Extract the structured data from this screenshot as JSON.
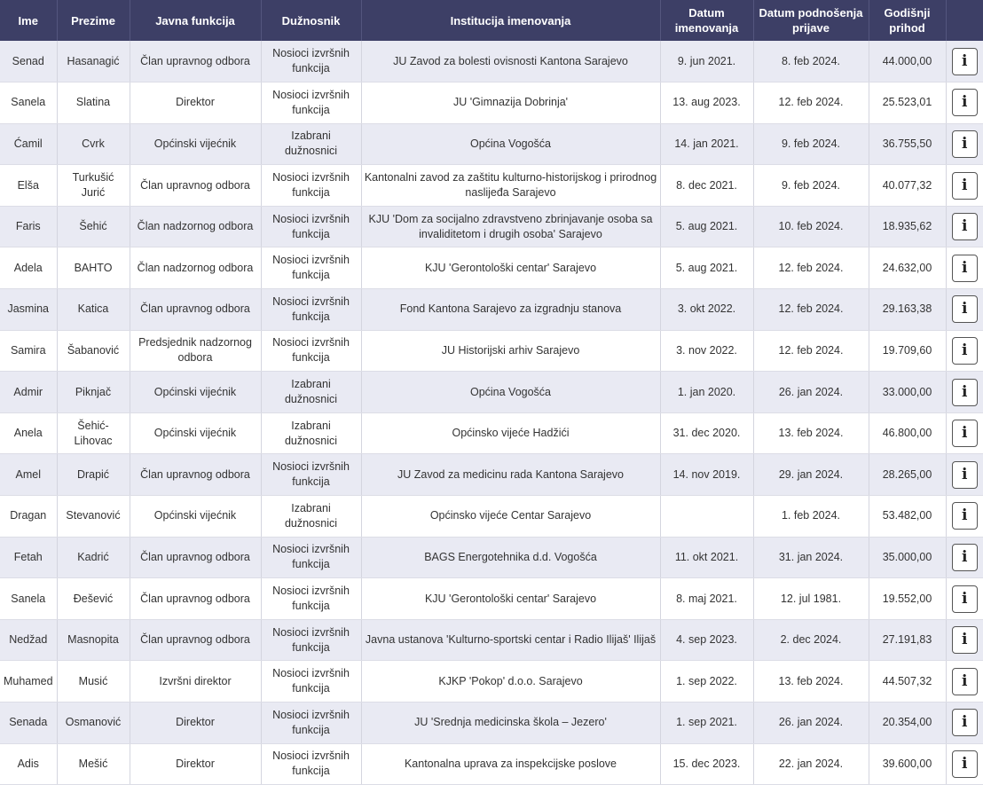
{
  "table": {
    "headers": [
      "Ime",
      "Prezime",
      "Javna funkcija",
      "Dužnosnik",
      "Institucija imenovanja",
      "Datum imenovanja",
      "Datum podnošenja prijave",
      "Godišnji prihod"
    ],
    "info_icon": "i",
    "rows": [
      [
        "Senad",
        "Hasanagić",
        "Član upravnog odbora",
        "Nosioci izvršnih funkcija",
        "JU Zavod za bolesti ovisnosti Kantona Sarajevo",
        "9. jun 2021.",
        "8. feb 2024.",
        "44.000,00"
      ],
      [
        "Sanela",
        "Slatina",
        "Direktor",
        "Nosioci izvršnih funkcija",
        "JU 'Gimnazija Dobrinja'",
        "13. aug 2023.",
        "12. feb 2024.",
        "25.523,01"
      ],
      [
        "Ćamil",
        "Cvrk",
        "Općinski vijećnik",
        "Izabrani dužnosnici",
        "Općina Vogošća",
        "14. jan 2021.",
        "9. feb 2024.",
        "36.755,50"
      ],
      [
        "Elša",
        "Turkušić Jurić",
        "Član upravnog odbora",
        "Nosioci izvršnih funkcija",
        "Kantonalni zavod za zaštitu kulturno-historijskog i prirodnog naslijeđa Sarajevo",
        "8. dec 2021.",
        "9. feb 2024.",
        "40.077,32"
      ],
      [
        "Faris",
        "Šehić",
        "Član nadzornog odbora",
        "Nosioci izvršnih funkcija",
        "KJU 'Dom za socijalno zdravstveno zbrinjavanje osoba sa invaliditetom i drugih osoba' Sarajevo",
        "5. aug 2021.",
        "10. feb 2024.",
        "18.935,62"
      ],
      [
        "Adela",
        "BAHTO",
        "Član nadzornog odbora",
        "Nosioci izvršnih funkcija",
        "KJU 'Gerontološki centar' Sarajevo",
        "5. aug 2021.",
        "12. feb 2024.",
        "24.632,00"
      ],
      [
        "Jasmina",
        "Katica",
        "Član upravnog odbora",
        "Nosioci izvršnih funkcija",
        "Fond Kantona Sarajevo za izgradnju stanova",
        "3. okt 2022.",
        "12. feb 2024.",
        "29.163,38"
      ],
      [
        "Samira",
        "Šabanović",
        "Predsjednik nadzornog odbora",
        "Nosioci izvršnih funkcija",
        "JU Historijski arhiv Sarajevo",
        "3. nov 2022.",
        "12. feb 2024.",
        "19.709,60"
      ],
      [
        "Admir",
        "Piknjač",
        "Općinski vijećnik",
        "Izabrani dužnosnici",
        "Općina Vogošća",
        "1. jan 2020.",
        "26. jan 2024.",
        "33.000,00"
      ],
      [
        "Anela",
        "Šehić-Lihovac",
        "Općinski vijećnik",
        "Izabrani dužnosnici",
        "Općinsko vijeće Hadžići",
        "31. dec 2020.",
        "13. feb 2024.",
        "46.800,00"
      ],
      [
        "Amel",
        "Drapić",
        "Član upravnog odbora",
        "Nosioci izvršnih funkcija",
        "JU Zavod za medicinu rada Kantona Sarajevo",
        "14. nov 2019.",
        "29. jan 2024.",
        "28.265,00"
      ],
      [
        "Dragan",
        "Stevanović",
        "Općinski vijećnik",
        "Izabrani dužnosnici",
        "Općinsko vijeće Centar Sarajevo",
        "",
        "1. feb 2024.",
        "53.482,00"
      ],
      [
        "Fetah",
        "Kadrić",
        "Član upravnog odbora",
        "Nosioci izvršnih funkcija",
        "BAGS Energotehnika d.d. Vogošća",
        "11. okt 2021.",
        "31. jan 2024.",
        "35.000,00"
      ],
      [
        "Sanela",
        "Đešević",
        "Član upravnog odbora",
        "Nosioci izvršnih funkcija",
        "KJU 'Gerontološki centar' Sarajevo",
        "8. maj 2021.",
        "12. jul 1981.",
        "19.552,00"
      ],
      [
        "Nedžad",
        "Masnopita",
        "Član upravnog odbora",
        "Nosioci izvršnih funkcija",
        "Javna ustanova 'Kulturno-sportski centar i Radio Ilijaš' Ilijaš",
        "4. sep 2023.",
        "2. dec 2024.",
        "27.191,83"
      ],
      [
        "Muhamed",
        "Musić",
        "Izvršni direktor",
        "Nosioci izvršnih funkcija",
        "KJKP 'Pokop' d.o.o. Sarajevo",
        "1. sep 2022.",
        "13. feb 2024.",
        "44.507,32"
      ],
      [
        "Senada",
        "Osmanović",
        "Direktor",
        "Nosioci izvršnih funkcija",
        "JU 'Srednja medicinska škola – Jezero'",
        "1. sep 2021.",
        "26. jan 2024.",
        "20.354,00"
      ],
      [
        "Adis",
        "Mešić",
        "Direktor",
        "Nosioci izvršnih funkcija",
        "Kantonalna uprava za inspekcijske poslove",
        "15. dec 2023.",
        "22. jan 2024.",
        "39.600,00"
      ]
    ]
  }
}
